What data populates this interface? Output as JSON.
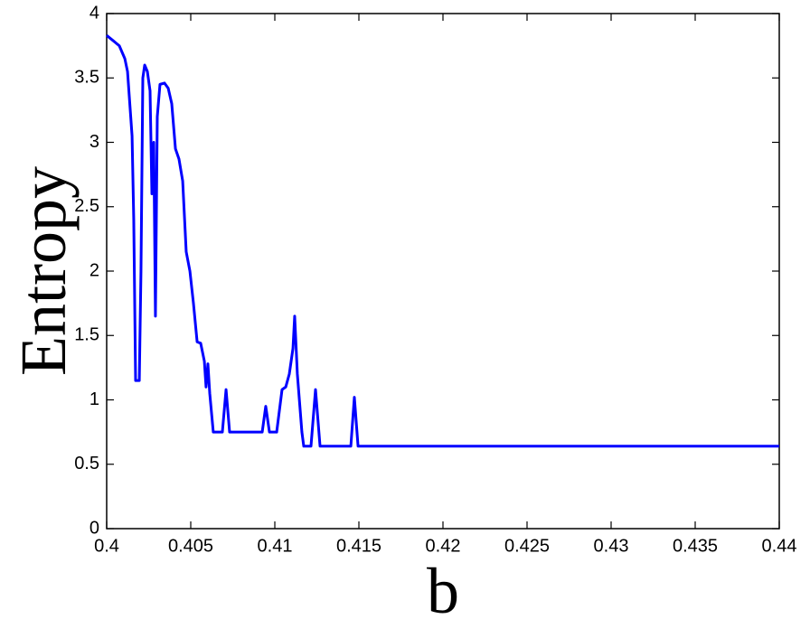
{
  "chart_data": {
    "type": "line",
    "x_label": "b",
    "y_label": "Entropy",
    "x": [
      0.4,
      0.40038,
      0.40075,
      0.40108,
      0.40124,
      0.40151,
      0.40161,
      0.40172,
      0.40194,
      0.40204,
      0.40215,
      0.40226,
      0.40242,
      0.40258,
      0.40269,
      0.4028,
      0.4029,
      0.40301,
      0.40317,
      0.40344,
      0.40366,
      0.40387,
      0.40409,
      0.4043,
      0.40452,
      0.40473,
      0.40495,
      0.40516,
      0.40538,
      0.40559,
      0.40581,
      0.40591,
      0.40602,
      0.40613,
      0.40634,
      0.40688,
      0.4071,
      0.40731,
      0.40925,
      0.40946,
      0.40968,
      0.41011,
      0.41043,
      0.41065,
      0.41086,
      0.41108,
      0.41118,
      0.41134,
      0.41161,
      0.41172,
      0.41215,
      0.41242,
      0.41269,
      0.41452,
      0.41473,
      0.41495,
      0.44
    ],
    "series": [
      {
        "name": "Entropy",
        "color": "#0000ff",
        "values": [
          3.83,
          3.79,
          3.75,
          3.65,
          3.55,
          3.05,
          2.4,
          1.15,
          1.15,
          2.0,
          3.5,
          3.6,
          3.55,
          3.4,
          2.6,
          3.0,
          1.65,
          3.2,
          3.45,
          3.46,
          3.42,
          3.3,
          2.95,
          2.87,
          2.7,
          2.15,
          2.0,
          1.75,
          1.45,
          1.44,
          1.3,
          1.1,
          1.28,
          1.05,
          0.75,
          0.75,
          1.08,
          0.75,
          0.75,
          0.95,
          0.75,
          0.75,
          1.08,
          1.1,
          1.2,
          1.4,
          1.65,
          1.2,
          0.75,
          0.64,
          0.64,
          1.08,
          0.64,
          0.64,
          1.02,
          0.64,
          0.64
        ]
      }
    ],
    "xlim": [
      0.4,
      0.44
    ],
    "xticks": [
      0.4,
      0.405,
      0.41,
      0.415,
      0.42,
      0.425,
      0.43,
      0.435,
      0.44
    ],
    "ylim": [
      0,
      4
    ],
    "yticks": [
      0,
      0.5,
      1,
      1.5,
      2,
      2.5,
      3,
      3.5,
      4
    ],
    "grid": false
  }
}
